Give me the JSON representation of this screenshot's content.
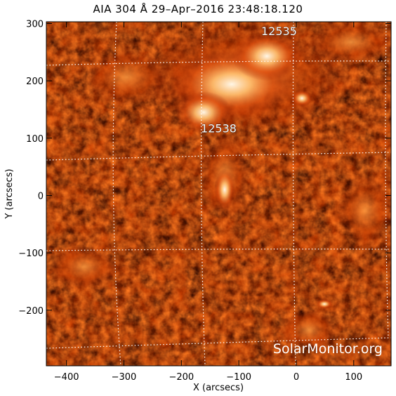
{
  "title": "AIA 304 Å 29–Apr–2016 23:48:18.120",
  "x_axis": {
    "label": "X (arcsecs)",
    "range": [
      -435,
      165
    ],
    "ticks": [
      {
        "value": -400,
        "label": "−400"
      },
      {
        "value": -300,
        "label": "−300"
      },
      {
        "value": -200,
        "label": "−200"
      },
      {
        "value": -100,
        "label": "−100"
      },
      {
        "value": 0,
        "label": "0"
      },
      {
        "value": 100,
        "label": "100"
      }
    ]
  },
  "y_axis": {
    "label": "Y (arcsecs)",
    "range": [
      -297,
      303
    ],
    "ticks": [
      {
        "value": 300,
        "label": "300"
      },
      {
        "value": 200,
        "label": "200"
      },
      {
        "value": 100,
        "label": "100"
      },
      {
        "value": 0,
        "label": "0"
      },
      {
        "value": -100,
        "label": "−100"
      },
      {
        "value": -200,
        "label": "−200"
      }
    ]
  },
  "active_regions": [
    {
      "label": "12535",
      "x": -30,
      "y": 280
    },
    {
      "label": "12538",
      "x": -135,
      "y": 110
    }
  ],
  "watermark": "SolarMonitor.org",
  "colors": {
    "background": "#ffffff",
    "image_dark": "#0a0000",
    "image_mid": "#8a1800",
    "image_bright": "#ff8a30",
    "image_hot": "#fff2dc",
    "grid": "#ffffff"
  }
}
